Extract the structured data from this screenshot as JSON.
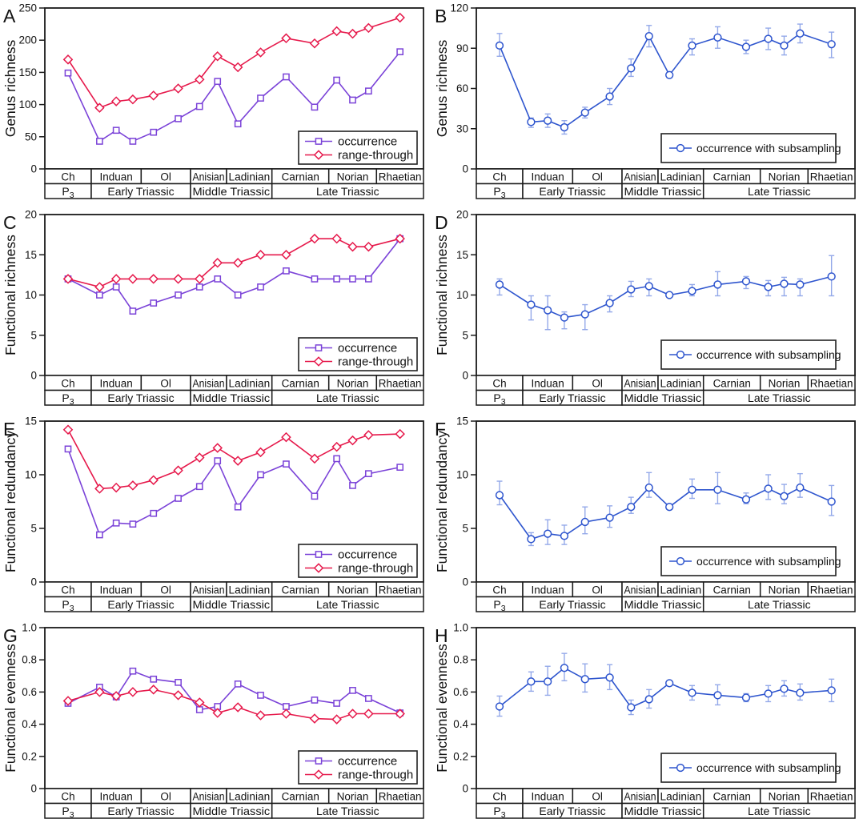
{
  "figure_style": {
    "background": "#FFFFFF",
    "frame": "#1A1A1A",
    "text": "#111111",
    "occurrence_color": "#7B43D8",
    "range_through_color": "#E6194B",
    "subsampling_color": "#2E55CE",
    "subsampling_error_color": "#94A9E9"
  },
  "chart_data": {
    "type": "line",
    "layout": {
      "grid": false,
      "legend_position": "lower-right",
      "panels_grid": [
        4,
        2
      ]
    },
    "x_axis": {
      "bin_positions": [
        0.0613,
        0.1446,
        0.1885,
        0.2324,
        0.287,
        0.3522,
        0.4086,
        0.4561,
        0.5099,
        0.5698,
        0.6373,
        0.7124,
        0.7709,
        0.8129,
        0.8549,
        0.938
      ],
      "stages": [
        {
          "label": "Ch",
          "width": 0.1226,
          "bins": 1
        },
        {
          "label": "Induan",
          "width": 0.1318,
          "bins": 3
        },
        {
          "label": "Ol",
          "width": 0.1304,
          "bins": 2
        },
        {
          "label": "Anisian",
          "width": 0.0951,
          "bins": 2
        },
        {
          "label": "Ladinian",
          "width": 0.1199,
          "bins": 2
        },
        {
          "label": "Carnian",
          "width": 0.1501,
          "bins": 2
        },
        {
          "label": "Norian",
          "width": 0.126,
          "bins": 3
        },
        {
          "label": "Rhaetian",
          "width": 0.1241,
          "bins": 1
        }
      ],
      "eras": [
        {
          "label": "P",
          "subscript": "3",
          "width": 0.1226
        },
        {
          "label": "Early Triassic",
          "width": 0.2622
        },
        {
          "label": "Middle Triassic",
          "width": 0.215
        },
        {
          "label": "Late Triassic",
          "width": 0.4002
        }
      ]
    },
    "panels": [
      {
        "letter": "A",
        "ylabel": "Genus richness",
        "ylim": [
          0,
          250
        ],
        "yticks": [
          "0",
          "50",
          "100",
          "150",
          "200",
          "250"
        ],
        "series": [
          {
            "name": "occurrence",
            "marker": "square",
            "color": "#7B43D8",
            "values": [
              149,
              43,
              60,
              43,
              57,
              78,
              97,
              136,
              70,
              110,
              143,
              96,
              138,
              107,
              121,
              182
            ]
          },
          {
            "name": "range-through",
            "marker": "diamond",
            "color": "#E6194B",
            "values": [
              170,
              95,
              105,
              108,
              114,
              125,
              139,
              175,
              158,
              181,
              203,
              195,
              214,
              210,
              219,
              235
            ]
          }
        ]
      },
      {
        "letter": "B",
        "ylabel": "Genus richness",
        "ylim": [
          0,
          120
        ],
        "yticks": [
          "0",
          "30",
          "60",
          "90",
          "120"
        ],
        "series": [
          {
            "name": "occurrence with subsampling",
            "marker": "circle",
            "color": "#2E55CE",
            "error_color": "#94A9E9",
            "values": [
              92,
              35,
              36,
              31,
              42,
              54,
              75,
              99,
              70,
              92,
              98,
              91,
              97,
              92,
              101,
              93
            ],
            "err_lo": [
              84,
              31,
              31,
              26,
              38,
              48,
              69,
              91,
              68,
              85,
              90,
              86,
              89,
              85,
              94,
              83
            ],
            "err_hi": [
              101,
              38,
              41,
              36,
              46,
              60,
              82,
              107,
              72,
              97,
              106,
              96,
              105,
              99,
              108,
              102
            ]
          }
        ]
      },
      {
        "letter": "C",
        "ylabel": "Functional richness",
        "ylim": [
          0,
          20
        ],
        "yticks": [
          "0",
          "5",
          "10",
          "15",
          "20"
        ],
        "series": [
          {
            "name": "occurrence",
            "marker": "square",
            "color": "#7B43D8",
            "values": [
              12,
              10,
              11,
              8,
              9,
              10,
              11,
              12,
              10,
              11,
              13,
              12,
              12,
              12,
              12,
              17
            ]
          },
          {
            "name": "range-through",
            "marker": "diamond",
            "color": "#E6194B",
            "values": [
              12,
              11,
              12,
              12,
              12,
              12,
              12,
              14,
              14,
              15,
              15,
              17,
              17,
              16,
              16,
              17
            ]
          }
        ]
      },
      {
        "letter": "D",
        "ylabel": "Functional richness",
        "ylim": [
          0,
          20
        ],
        "yticks": [
          "0",
          "5",
          "10",
          "15",
          "20"
        ],
        "series": [
          {
            "name": "occurrence with subsampling",
            "marker": "circle",
            "color": "#2E55CE",
            "error_color": "#94A9E9",
            "values": [
              11.3,
              8.8,
              8.1,
              7.2,
              7.6,
              9.0,
              10.7,
              11.1,
              10.0,
              10.5,
              11.3,
              11.7,
              11.0,
              11.4,
              11.3,
              12.3
            ],
            "err_lo": [
              10.0,
              6.9,
              5.7,
              5.8,
              5.7,
              7.9,
              9.8,
              9.9,
              9.9,
              9.9,
              9.9,
              10.8,
              9.9,
              9.9,
              9.9,
              9.9
            ],
            "err_hi": [
              12.0,
              9.9,
              9.9,
              7.9,
              8.8,
              9.9,
              11.7,
              12.0,
              10.1,
              11.3,
              12.9,
              12.3,
              11.8,
              12.2,
              12.0,
              14.9
            ]
          }
        ]
      },
      {
        "letter": "E",
        "ylabel": "Functional redundancy",
        "ylim": [
          0,
          15
        ],
        "yticks": [
          "0",
          "5",
          "10",
          "15"
        ],
        "series": [
          {
            "name": "occurrence",
            "marker": "square",
            "color": "#7B43D8",
            "values": [
              12.4,
              4.4,
              5.5,
              5.4,
              6.4,
              7.8,
              8.9,
              11.3,
              7.0,
              10.0,
              11.0,
              8.0,
              11.5,
              9.0,
              10.1,
              10.7
            ]
          },
          {
            "name": "range-through",
            "marker": "diamond",
            "color": "#E6194B",
            "values": [
              14.2,
              8.7,
              8.8,
              9.0,
              9.5,
              10.4,
              11.6,
              12.5,
              11.3,
              12.1,
              13.5,
              11.5,
              12.6,
              13.2,
              13.7,
              13.8
            ]
          }
        ]
      },
      {
        "letter": "F",
        "ylabel": "Functional redundancy",
        "ylim": [
          0,
          15
        ],
        "yticks": [
          "0",
          "5",
          "10",
          "15"
        ],
        "series": [
          {
            "name": "occurrence with subsampling",
            "marker": "circle",
            "color": "#2E55CE",
            "error_color": "#94A9E9",
            "values": [
              8.1,
              4.0,
              4.5,
              4.3,
              5.6,
              6.0,
              7.0,
              8.8,
              7.0,
              8.6,
              8.6,
              7.7,
              8.7,
              8.0,
              8.8,
              7.5
            ],
            "err_lo": [
              7.2,
              3.4,
              3.5,
              3.5,
              4.5,
              5.1,
              6.4,
              7.9,
              6.9,
              7.8,
              7.3,
              7.3,
              7.7,
              7.3,
              7.9,
              6.2
            ],
            "err_hi": [
              9.4,
              4.6,
              5.8,
              5.3,
              7.0,
              7.1,
              7.9,
              10.2,
              7.1,
              9.6,
              10.2,
              8.3,
              10.0,
              9.1,
              10.1,
              9.0
            ]
          }
        ]
      },
      {
        "letter": "G",
        "ylabel": "Functional evenness",
        "ylim": [
          0,
          1.0
        ],
        "yticks": [
          "0",
          "0.2",
          "0.4",
          "0.6",
          "0.8",
          "1.0"
        ],
        "series": [
          {
            "name": "occurrence",
            "marker": "square",
            "color": "#7B43D8",
            "values": [
              0.53,
              0.63,
              0.57,
              0.73,
              0.68,
              0.66,
              0.49,
              0.51,
              0.65,
              0.58,
              0.51,
              0.55,
              0.53,
              0.61,
              0.56,
              0.47
            ]
          },
          {
            "name": "range-through",
            "marker": "diamond",
            "color": "#E6194B",
            "values": [
              0.545,
              0.6,
              0.575,
              0.6,
              0.615,
              0.58,
              0.535,
              0.47,
              0.505,
              0.455,
              0.465,
              0.435,
              0.43,
              0.465,
              0.465,
              0.465
            ]
          }
        ]
      },
      {
        "letter": "H",
        "ylabel": "Functional evenness",
        "ylim": [
          0,
          1.0
        ],
        "yticks": [
          "0",
          "0.2",
          "0.4",
          "0.6",
          "0.8",
          "1.0"
        ],
        "series": [
          {
            "name": "occurrence with subsampling",
            "marker": "circle",
            "color": "#2E55CE",
            "error_color": "#94A9E9",
            "values": [
              0.51,
              0.665,
              0.665,
              0.75,
              0.68,
              0.69,
              0.505,
              0.555,
              0.655,
              0.595,
              0.58,
              0.565,
              0.59,
              0.62,
              0.595,
              0.61
            ],
            "err_lo": [
              0.45,
              0.605,
              0.58,
              0.67,
              0.6,
              0.615,
              0.46,
              0.5,
              0.645,
              0.55,
              0.52,
              0.54,
              0.54,
              0.575,
              0.55,
              0.54
            ],
            "err_hi": [
              0.575,
              0.725,
              0.76,
              0.84,
              0.775,
              0.77,
              0.55,
              0.615,
              0.665,
              0.64,
              0.645,
              0.59,
              0.64,
              0.67,
              0.65,
              0.68
            ]
          }
        ]
      }
    ]
  }
}
